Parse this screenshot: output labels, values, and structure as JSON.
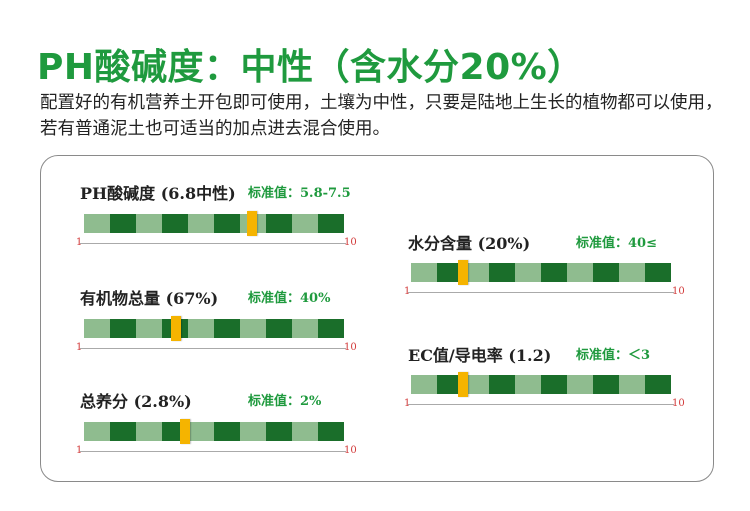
{
  "title": "PH酸碱度：中性（含水分20%）",
  "description": "配置好的有机营养土开包即可使用，土壤为中性，只要是陆地上生长的植物都可以使用，若有普通泥土也可适当的加点进去混合使用。",
  "colors": {
    "accent_green": "#1f9a3e",
    "bar_light": "#8fbc8f",
    "bar_dark": "#1a6e2a",
    "marker": "#f5b400",
    "scale_label": "#d23a3a"
  },
  "scale": {
    "min": "1",
    "max": "10"
  },
  "metrics": [
    {
      "label": "PH酸碱度 (6.8中性)",
      "standard": "标准值：5.8-7.5",
      "level": 6.8
    },
    {
      "label": "有机物总量 (67%)",
      "standard": "标准值：40%",
      "level": 4.2
    },
    {
      "label": "总养分 (2.8%)",
      "standard": "标准值：2%",
      "level": 4.5
    },
    {
      "label": "水分含量 (20%)",
      "standard": "标准值：40≤",
      "level": 2.8
    },
    {
      "label": "EC值/导电率 (1.2)",
      "standard": "标准值：＜3",
      "level": 2.8
    }
  ]
}
